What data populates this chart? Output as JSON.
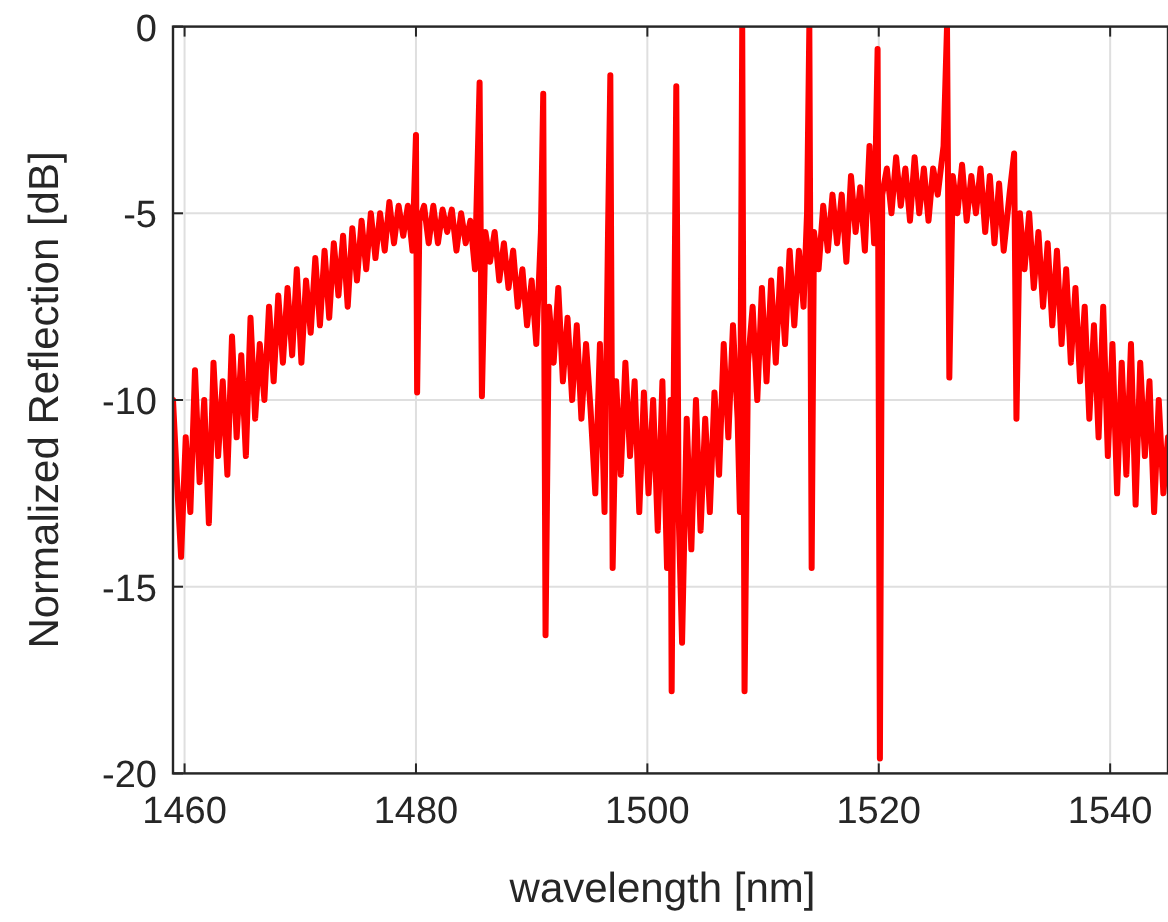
{
  "chart_data": {
    "type": "line",
    "xlabel": "wavelength [nm]",
    "ylabel": "Normalized Reflection [dB]",
    "xlim": [
      1459,
      1545
    ],
    "ylim": [
      -20,
      0
    ],
    "xticks": [
      1460,
      1480,
      1500,
      1520,
      1540
    ],
    "yticks": [
      -20,
      -15,
      -10,
      -5,
      0
    ],
    "grid": true,
    "line_style": "solid",
    "marker": "none",
    "series": [
      {
        "color": "#ff0000",
        "x": [
          1459.0,
          1459.4,
          1459.7,
          1460.1,
          1460.5,
          1460.9,
          1461.3,
          1461.7,
          1462.1,
          1462.5,
          1462.9,
          1463.3,
          1463.7,
          1464.1,
          1464.5,
          1464.9,
          1465.3,
          1465.7,
          1466.1,
          1466.5,
          1466.9,
          1467.3,
          1467.7,
          1468.1,
          1468.5,
          1468.9,
          1469.3,
          1469.7,
          1470.1,
          1470.5,
          1470.9,
          1471.3,
          1471.7,
          1472.1,
          1472.5,
          1472.9,
          1473.3,
          1473.7,
          1474.1,
          1474.5,
          1474.9,
          1475.3,
          1475.7,
          1476.1,
          1476.5,
          1476.9,
          1477.3,
          1477.7,
          1478.1,
          1478.5,
          1478.9,
          1479.3,
          1479.7,
          1480.0,
          1480.1,
          1480.3,
          1480.7,
          1481.1,
          1481.5,
          1481.9,
          1482.3,
          1482.7,
          1483.1,
          1483.5,
          1483.9,
          1484.3,
          1484.7,
          1485.1,
          1485.5,
          1485.7,
          1486.0,
          1486.4,
          1486.8,
          1487.2,
          1487.6,
          1488.0,
          1488.4,
          1488.8,
          1489.2,
          1489.6,
          1490.0,
          1490.4,
          1490.8,
          1491.0,
          1491.2,
          1491.5,
          1491.9,
          1492.3,
          1492.7,
          1493.1,
          1493.5,
          1493.9,
          1494.3,
          1494.7,
          1495.1,
          1495.5,
          1495.9,
          1496.3,
          1496.6,
          1496.8,
          1497.0,
          1497.3,
          1497.7,
          1498.1,
          1498.5,
          1498.9,
          1499.3,
          1499.7,
          1500.1,
          1500.5,
          1500.9,
          1501.3,
          1501.7,
          1502.0,
          1502.1,
          1502.3,
          1502.5,
          1502.7,
          1503.0,
          1503.4,
          1503.8,
          1504.2,
          1504.6,
          1505.0,
          1505.4,
          1505.8,
          1506.2,
          1506.6,
          1507.0,
          1507.4,
          1507.8,
          1508.0,
          1508.2,
          1508.4,
          1508.7,
          1509.1,
          1509.5,
          1509.9,
          1510.3,
          1510.7,
          1511.1,
          1511.5,
          1511.9,
          1512.3,
          1512.7,
          1513.1,
          1513.5,
          1513.8,
          1514.0,
          1514.2,
          1514.4,
          1514.8,
          1515.2,
          1515.6,
          1516.0,
          1516.4,
          1516.8,
          1517.2,
          1517.6,
          1518.0,
          1518.4,
          1518.8,
          1519.2,
          1519.6,
          1519.9,
          1520.1,
          1520.3,
          1520.7,
          1521.1,
          1521.5,
          1521.9,
          1522.3,
          1522.7,
          1523.1,
          1523.5,
          1523.9,
          1524.3,
          1524.7,
          1525.1,
          1525.6,
          1525.9,
          1526.1,
          1526.4,
          1526.8,
          1527.2,
          1527.6,
          1528.0,
          1528.4,
          1528.8,
          1529.2,
          1529.6,
          1530.0,
          1530.4,
          1530.8,
          1531.3,
          1531.7,
          1531.9,
          1532.2,
          1532.6,
          1533.0,
          1533.4,
          1533.8,
          1534.2,
          1534.6,
          1535.0,
          1535.4,
          1535.8,
          1536.2,
          1536.6,
          1537.0,
          1537.4,
          1537.8,
          1538.2,
          1538.6,
          1539.0,
          1539.4,
          1539.8,
          1540.2,
          1540.6,
          1541.0,
          1541.4,
          1541.8,
          1542.2,
          1542.6,
          1543.0,
          1543.4,
          1543.8,
          1544.2,
          1544.6,
          1545.0
        ],
        "values": [
          -10.0,
          -12.5,
          -14.2,
          -11.0,
          -13.0,
          -9.2,
          -12.2,
          -10.0,
          -13.3,
          -9.0,
          -11.5,
          -9.5,
          -12.0,
          -8.3,
          -11.0,
          -8.8,
          -11.5,
          -7.8,
          -10.5,
          -8.5,
          -10.0,
          -7.5,
          -9.5,
          -7.2,
          -9.0,
          -7.0,
          -8.8,
          -6.5,
          -9.0,
          -6.8,
          -8.2,
          -6.2,
          -8.0,
          -6.0,
          -7.8,
          -5.8,
          -7.2,
          -5.6,
          -7.5,
          -5.4,
          -6.8,
          -5.2,
          -6.5,
          -5.0,
          -6.2,
          -5.0,
          -6.0,
          -4.7,
          -5.8,
          -4.8,
          -5.6,
          -4.8,
          -6.0,
          -2.9,
          -9.8,
          -5.2,
          -4.8,
          -5.8,
          -4.8,
          -5.8,
          -4.9,
          -5.5,
          -4.9,
          -6.0,
          -5.0,
          -5.8,
          -5.2,
          -6.5,
          -1.5,
          -9.9,
          -5.5,
          -6.3,
          -5.5,
          -6.8,
          -5.8,
          -7.0,
          -6.0,
          -7.5,
          -6.5,
          -8.0,
          -6.8,
          -8.5,
          -5.5,
          -1.8,
          -16.3,
          -7.5,
          -9.0,
          -7.0,
          -9.5,
          -7.8,
          -10.0,
          -8.0,
          -10.5,
          -8.5,
          -10.3,
          -12.5,
          -8.5,
          -13.0,
          -5.5,
          -1.3,
          -14.5,
          -9.5,
          -12.0,
          -9.0,
          -11.5,
          -9.5,
          -13.0,
          -9.8,
          -12.5,
          -10.0,
          -13.5,
          -9.5,
          -14.5,
          -10.0,
          -17.8,
          -9.0,
          -1.6,
          -13.0,
          -16.5,
          -10.5,
          -14.0,
          -10.0,
          -13.5,
          -10.5,
          -13.0,
          -9.8,
          -12.0,
          -8.5,
          -11.0,
          -8.0,
          -10.5,
          -13.0,
          0,
          -17.8,
          -9.0,
          -7.5,
          -10.0,
          -7.0,
          -9.5,
          -6.8,
          -9.0,
          -6.5,
          -8.5,
          -6.0,
          -8.0,
          -6.0,
          -7.5,
          -5.0,
          0,
          -14.5,
          -5.5,
          -6.5,
          -4.8,
          -6.0,
          -4.5,
          -5.8,
          -4.5,
          -6.3,
          -4.0,
          -5.5,
          -4.3,
          -6.0,
          -3.2,
          -5.8,
          -0.6,
          -19.6,
          -4.5,
          -3.8,
          -5.0,
          -3.5,
          -4.8,
          -3.8,
          -5.2,
          -3.5,
          -5.0,
          -3.8,
          -5.2,
          -3.8,
          -4.5,
          -3.2,
          0,
          -9.4,
          -4.0,
          -5.0,
          -3.7,
          -5.2,
          -4.0,
          -5.0,
          -3.8,
          -5.5,
          -4.0,
          -5.8,
          -4.2,
          -6.0,
          -4.5,
          -3.4,
          -10.5,
          -5.0,
          -6.5,
          -5.0,
          -7.0,
          -5.5,
          -7.5,
          -5.8,
          -8.0,
          -6.0,
          -8.5,
          -6.5,
          -9.0,
          -7.0,
          -9.5,
          -7.5,
          -10.5,
          -8.0,
          -11.0,
          -7.5,
          -11.5,
          -8.5,
          -12.5,
          -9.0,
          -12.0,
          -8.5,
          -12.8,
          -9.0,
          -11.5,
          -9.5,
          -13.0,
          -10.0,
          -12.5,
          -11.0
        ]
      }
    ]
  }
}
